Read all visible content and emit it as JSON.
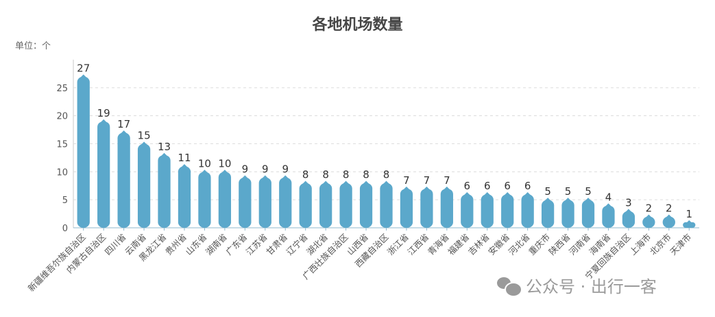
{
  "chart_data": {
    "type": "bar",
    "title": "各地机场数量",
    "unit_label": "单位：个",
    "xlabel": "",
    "ylabel": "",
    "ylim": [
      0,
      30
    ],
    "yticks": [
      0,
      5,
      10,
      15,
      20,
      25
    ],
    "grid": true,
    "bar_color": "#5ba8cb",
    "categories": [
      "新疆维吾尔族自治区",
      "内蒙古自治区",
      "四川省",
      "云南省",
      "黑龙江省",
      "贵州省",
      "山东省",
      "湖南省",
      "广东省",
      "江苏省",
      "甘肃省",
      "辽宁省",
      "湖北省",
      "广西壮族自治区",
      "山西省",
      "西藏自治区",
      "浙江省",
      "江西省",
      "青海省",
      "福建省",
      "吉林省",
      "安徽省",
      "河北省",
      "重庆市",
      "陕西省",
      "河南省",
      "海南省",
      "宁夏回族自治区",
      "上海市",
      "北京市",
      "天津市"
    ],
    "values": [
      27,
      19,
      17,
      15,
      13,
      11,
      10,
      10,
      9,
      9,
      9,
      8,
      8,
      8,
      8,
      8,
      7,
      7,
      7,
      6,
      6,
      6,
      6,
      5,
      5,
      5,
      4,
      3,
      2,
      2,
      1
    ]
  },
  "watermark": "公众号 · 出行一客"
}
